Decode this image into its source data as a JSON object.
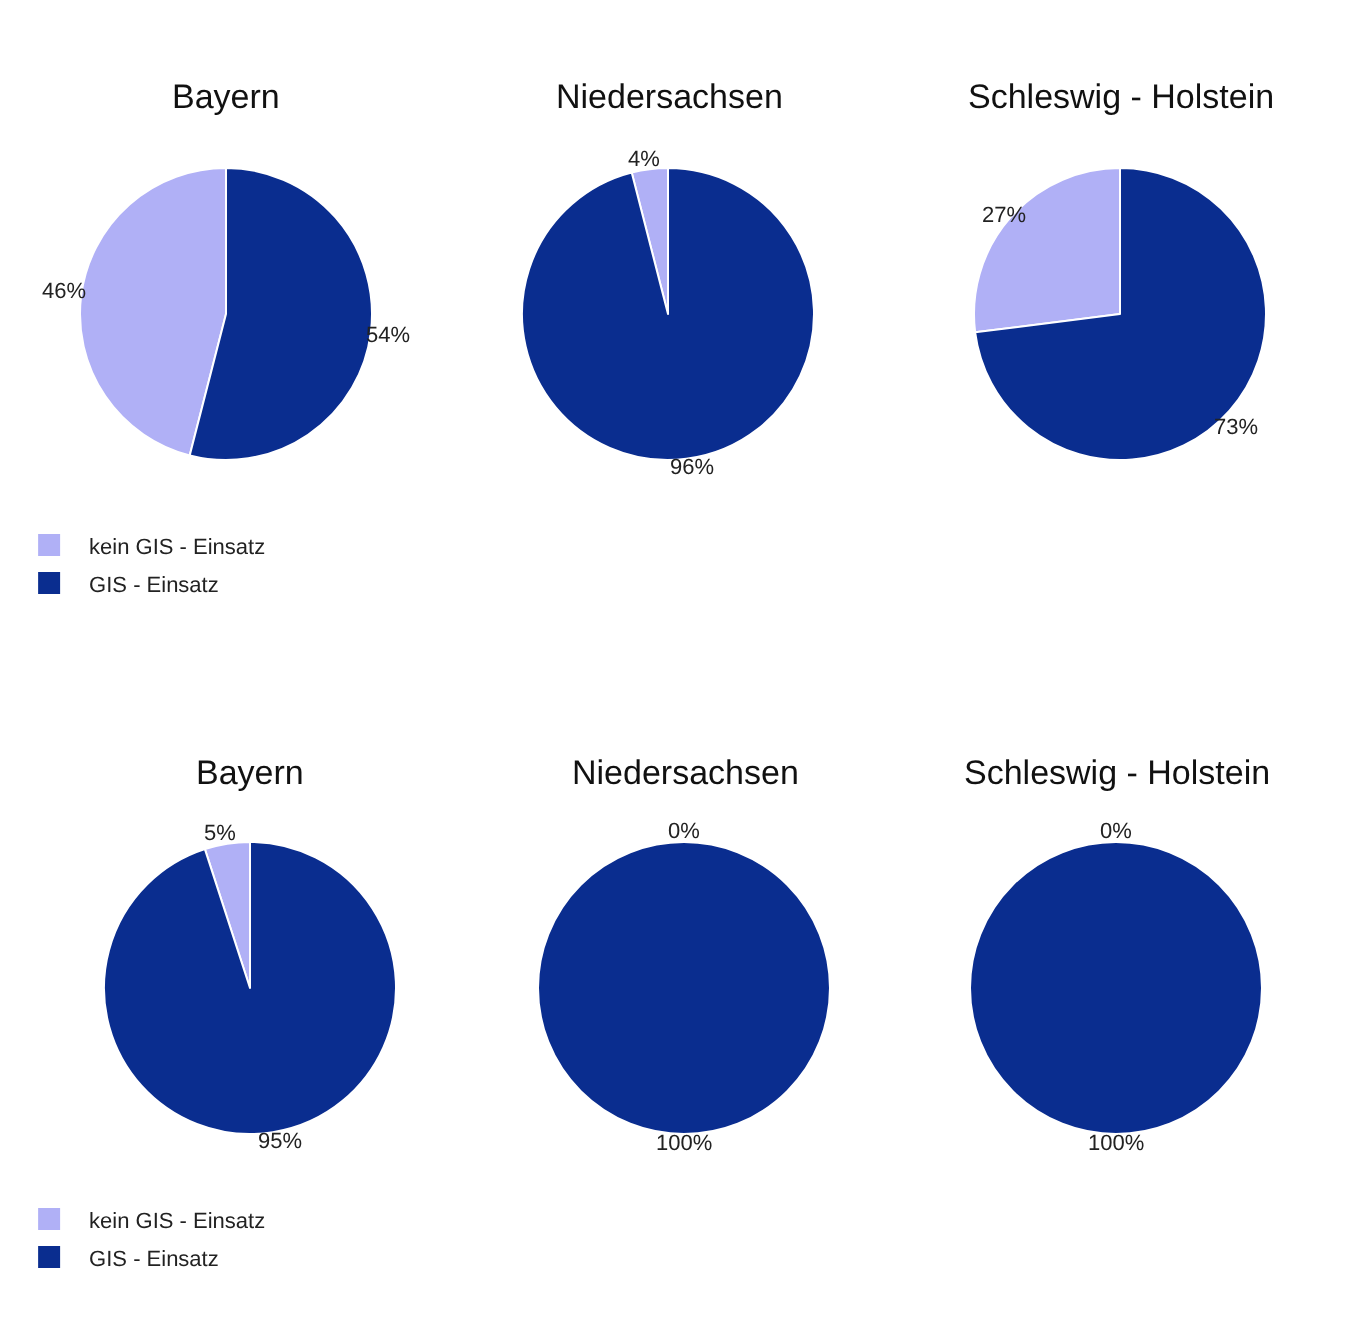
{
  "chart_data": [
    {
      "type": "pie",
      "title": "Bayern",
      "categories": [
        "kein GIS - Einsatz",
        "GIS - Einsatz"
      ],
      "values": [
        46,
        54
      ],
      "value_labels": [
        "46%",
        "54%"
      ],
      "colors": [
        "#b0b0f6",
        "#0a2d8f"
      ],
      "legend": "bottom left"
    },
    {
      "type": "pie",
      "title": "Niedersachsen",
      "categories": [
        null,
        null
      ],
      "values": [
        4,
        96
      ],
      "value_labels": [
        "4%",
        "96%"
      ],
      "colors": [
        "#b0b0f6",
        "#0a2d8f"
      ]
    },
    {
      "type": "pie",
      "title": "Schleswig - Holstein",
      "categories": [
        null,
        null
      ],
      "values": [
        27,
        73
      ],
      "value_labels": [
        "27%",
        "73%"
      ],
      "colors": [
        "#b0b0f6",
        "#0a2d8f"
      ]
    },
    {
      "type": "pie",
      "title": "Bayern",
      "categories": [
        "kein GIS - Einsatz",
        "GIS - Einsatz"
      ],
      "values": [
        5,
        95
      ],
      "value_labels": [
        "5%",
        "95%"
      ],
      "colors": [
        "#b0b0f6",
        "#0a2d8f"
      ],
      "legend": "bottom left"
    },
    {
      "type": "pie",
      "title": "Niedersachsen",
      "categories": [
        null,
        null
      ],
      "values": [
        0,
        100
      ],
      "value_labels": [
        "0%",
        "100%"
      ],
      "colors": [
        "#b0b0f6",
        "#0a2d8f"
      ]
    },
    {
      "type": "pie",
      "title": "Schleswig - Holstein",
      "categories": [
        null,
        null
      ],
      "values": [
        0,
        100
      ],
      "value_labels": [
        "0%",
        "100%"
      ],
      "colors": [
        "#b0b0f6",
        "#0a2d8f"
      ]
    }
  ]
}
